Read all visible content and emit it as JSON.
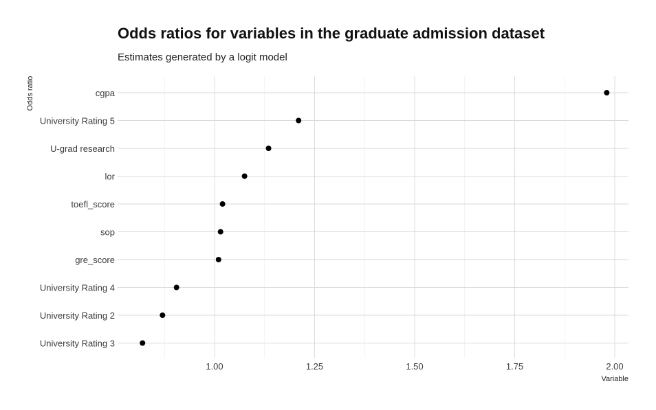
{
  "chart_data": {
    "type": "scatter",
    "title": "Odds ratios for variables in the graduate admission dataset",
    "subtitle": "Estimates generated by a logit model",
    "xlabel": "Variable",
    "ylabel": "Odds ratio",
    "xlim": [
      0.82,
      2.03
    ],
    "x_ticks": [
      1.0,
      1.25,
      1.5,
      1.75,
      2.0
    ],
    "x_tick_labels": [
      "1.00",
      "1.25",
      "1.50",
      "1.75",
      "2.00"
    ],
    "grid": true,
    "point_color": "#000000",
    "categories": [
      "cgpa",
      "University Rating 5",
      "U-grad research",
      "lor",
      "toefl_score",
      "sop",
      "gre_score",
      "University Rating 4",
      "University Rating 2",
      "University Rating 3"
    ],
    "values": [
      1.98,
      1.21,
      1.135,
      1.075,
      1.02,
      1.015,
      1.01,
      0.905,
      0.87,
      0.82
    ]
  }
}
